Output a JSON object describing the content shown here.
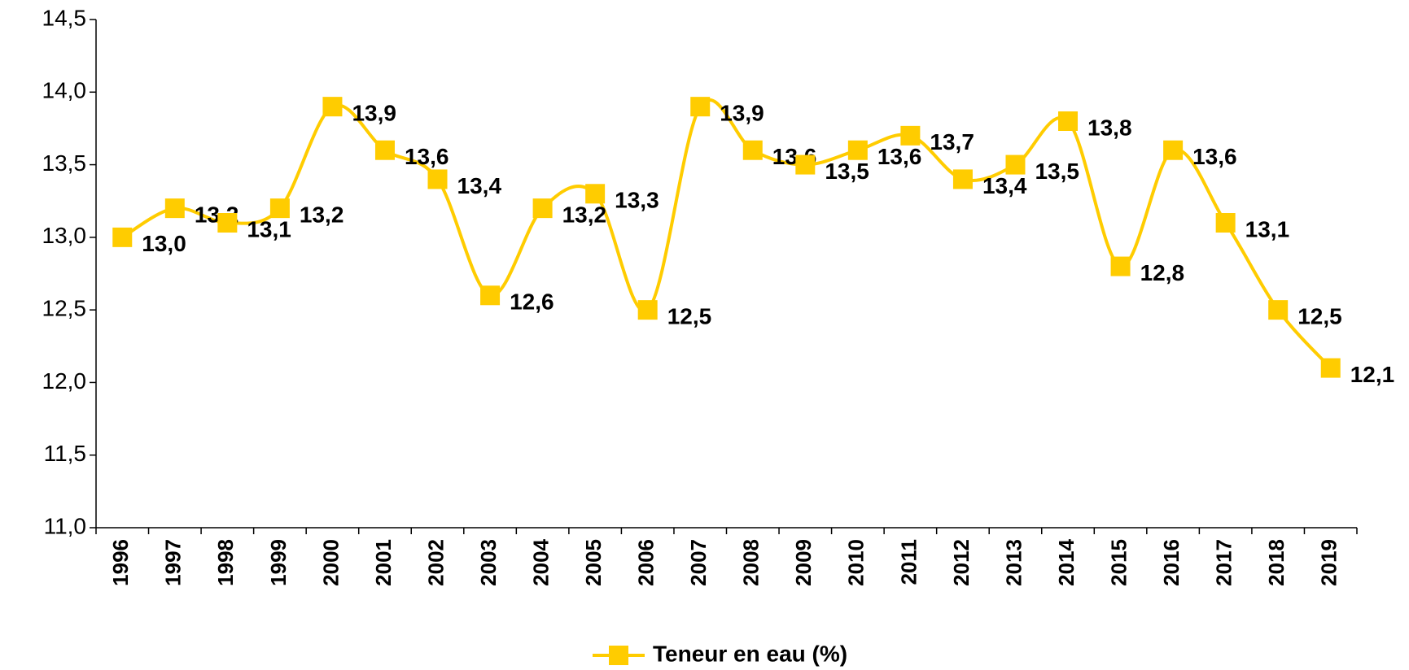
{
  "chart_data": {
    "type": "line",
    "categories": [
      "1996",
      "1997",
      "1998",
      "1999",
      "2000",
      "2001",
      "2002",
      "2003",
      "2004",
      "2005",
      "2006",
      "2007",
      "2008",
      "2009",
      "2010",
      "2011",
      "2012",
      "2013",
      "2014",
      "2015",
      "2016",
      "2017",
      "2018",
      "2019"
    ],
    "series": [
      {
        "name": "Teneur en eau (%)",
        "color": "#ffcc00",
        "values": [
          13.0,
          13.2,
          13.1,
          13.2,
          13.9,
          13.6,
          13.4,
          12.6,
          13.2,
          13.3,
          12.5,
          13.9,
          13.6,
          13.5,
          13.6,
          13.7,
          13.4,
          13.5,
          13.8,
          12.8,
          13.6,
          13.1,
          12.5,
          12.1
        ],
        "value_labels": [
          "13,0",
          "13,2",
          "13,1",
          "13,2",
          "13,9",
          "13,6",
          "13,4",
          "12,6",
          "13,2",
          "13,3",
          "12,5",
          "13,9",
          "13,6",
          "13,5",
          "13,6",
          "13,7",
          "13,4",
          "13,5",
          "13,8",
          "12,8",
          "13,6",
          "13,1",
          "12,5",
          "12,1"
        ]
      }
    ],
    "ylim": [
      11.0,
      14.5
    ],
    "yticks": [
      {
        "value": 11.0,
        "label": "11,0"
      },
      {
        "value": 11.5,
        "label": "11,5"
      },
      {
        "value": 12.0,
        "label": "12,0"
      },
      {
        "value": 12.5,
        "label": "12,5"
      },
      {
        "value": 13.0,
        "label": "13,0"
      },
      {
        "value": 13.5,
        "label": "13,5"
      },
      {
        "value": 14.0,
        "label": "14,0"
      },
      {
        "value": 14.5,
        "label": "14,5"
      }
    ],
    "legend": "bottom"
  }
}
